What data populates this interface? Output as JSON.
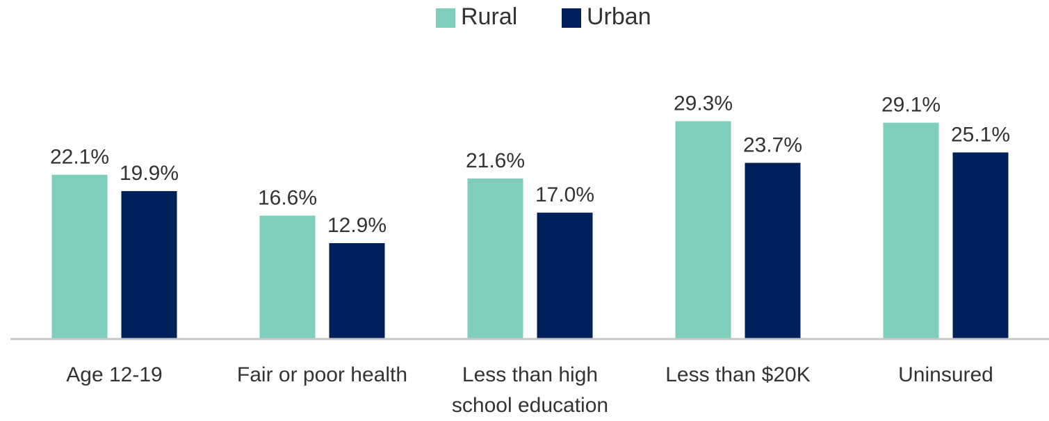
{
  "chart_data": {
    "type": "bar",
    "categories": [
      "Age 12-19",
      "Fair or poor health",
      "Less than high school education",
      "Less than $20K",
      "Uninsured"
    ],
    "series": [
      {
        "name": "Rural",
        "color": "#7fcdbb",
        "values": [
          22.1,
          16.6,
          21.6,
          29.3,
          29.1
        ],
        "value_labels": [
          "22.1%",
          "16.6%",
          "21.6%",
          "29.3%",
          "29.1%"
        ]
      },
      {
        "name": "Urban",
        "color": "#00205b",
        "values": [
          19.9,
          12.9,
          17.0,
          23.7,
          25.1
        ],
        "value_labels": [
          "19.9%",
          "12.9%",
          "17.0%",
          "23.7%",
          "25.1%"
        ]
      }
    ],
    "legend": "top"
  }
}
